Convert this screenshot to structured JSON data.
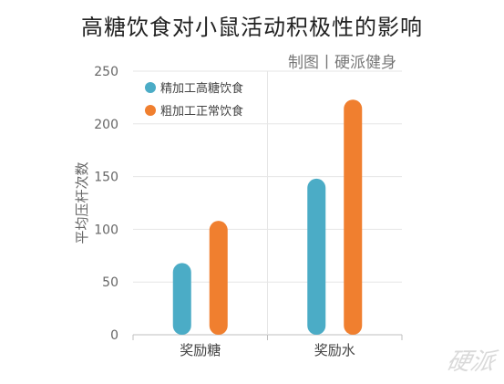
{
  "title": "高糖饮食对小鼠活动积极性的影响",
  "credit": "制图丨硬派健身",
  "watermark": "硬派",
  "colors": {
    "series_1": "#4bacc6",
    "series_2": "#f07f2f",
    "axis": "#bfbfbf",
    "grid": "#e6e6e6",
    "text": "#666666"
  },
  "chart_data": {
    "type": "bar",
    "title": "高糖饮食对小鼠活动积极性的影响",
    "xlabel": "",
    "ylabel": "平均压杆次数",
    "ylim": [
      0,
      250
    ],
    "yticks": [
      0,
      50,
      100,
      150,
      200,
      250
    ],
    "categories": [
      "奖励糖",
      "奖励水"
    ],
    "series": [
      {
        "name": "精加工高糖饮食",
        "values": [
          68,
          148
        ]
      },
      {
        "name": "粗加工正常饮食",
        "values": [
          108,
          223
        ]
      }
    ],
    "legend": "top-left",
    "grid": true
  }
}
